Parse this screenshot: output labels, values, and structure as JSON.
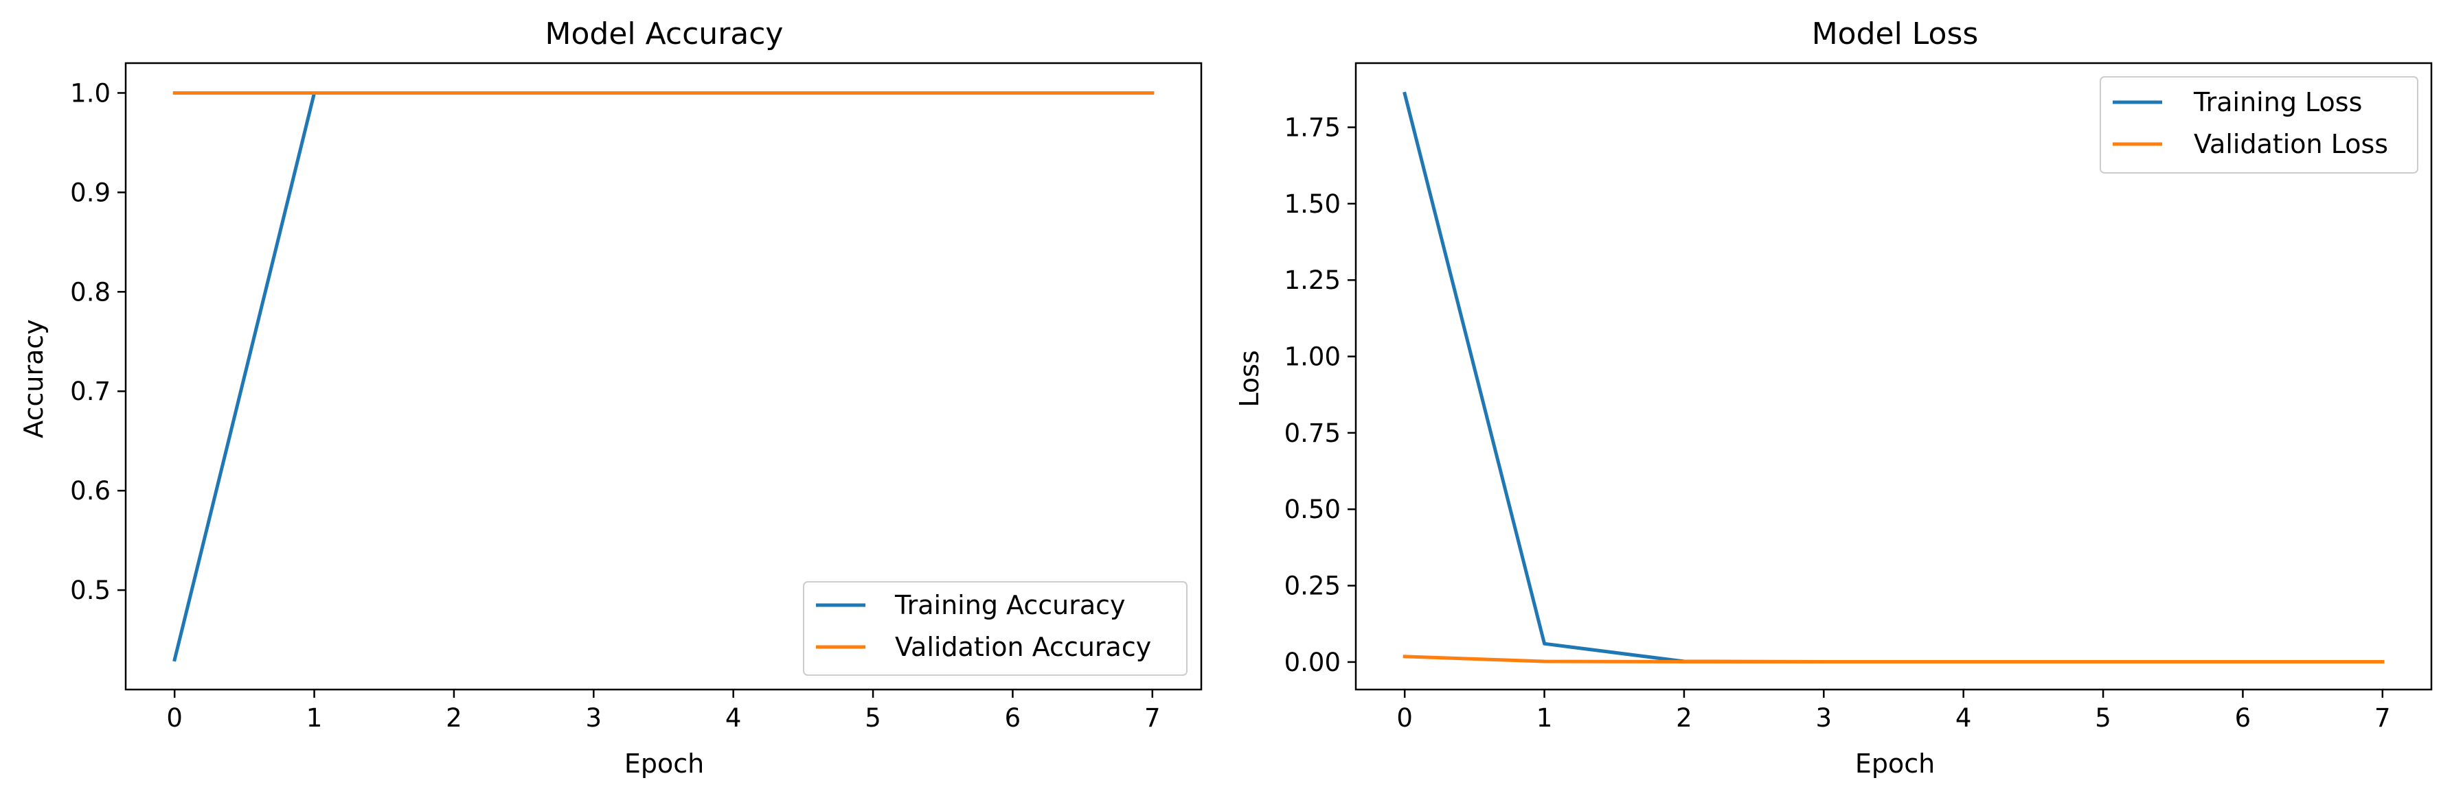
{
  "chart_data": [
    {
      "type": "line",
      "title": "Model Accuracy",
      "xlabel": "Epoch",
      "ylabel": "Accuracy",
      "x": [
        0,
        1,
        2,
        3,
        4,
        5,
        6,
        7
      ],
      "xlim": [
        -0.35,
        7.35
      ],
      "ylim": [
        0.4,
        1.03
      ],
      "xticks": [
        "0",
        "1",
        "2",
        "3",
        "4",
        "5",
        "6",
        "7"
      ],
      "yticks": [
        "0.5",
        "0.6",
        "0.7",
        "0.8",
        "0.9",
        "1.0"
      ],
      "grid": false,
      "legend_position": "lower-right",
      "series": [
        {
          "name": "Training Accuracy",
          "color": "#1f77b4",
          "values": [
            0.43,
            1.0,
            1.0,
            1.0,
            1.0,
            1.0,
            1.0,
            1.0
          ]
        },
        {
          "name": "Validation Accuracy",
          "color": "#ff7f0e",
          "values": [
            1.0,
            1.0,
            1.0,
            1.0,
            1.0,
            1.0,
            1.0,
            1.0
          ]
        }
      ]
    },
    {
      "type": "line",
      "title": "Model Loss",
      "xlabel": "Epoch",
      "ylabel": "Loss",
      "x": [
        0,
        1,
        2,
        3,
        4,
        5,
        6,
        7
      ],
      "xlim": [
        -0.35,
        7.35
      ],
      "ylim": [
        -0.09,
        1.96
      ],
      "xticks": [
        "0",
        "1",
        "2",
        "3",
        "4",
        "5",
        "6",
        "7"
      ],
      "yticks": [
        "0.00",
        "0.25",
        "0.50",
        "0.75",
        "1.00",
        "1.25",
        "1.50",
        "1.75"
      ],
      "grid": false,
      "legend_position": "upper-right",
      "series": [
        {
          "name": "Training Loss",
          "color": "#1f77b4",
          "values": [
            1.86,
            0.06,
            0.002,
            0.001,
            0.001,
            0.001,
            0.001,
            0.001
          ]
        },
        {
          "name": "Validation Loss",
          "color": "#ff7f0e",
          "values": [
            0.018,
            0.002,
            0.001,
            0.001,
            0.001,
            0.001,
            0.001,
            0.001
          ]
        }
      ]
    }
  ]
}
